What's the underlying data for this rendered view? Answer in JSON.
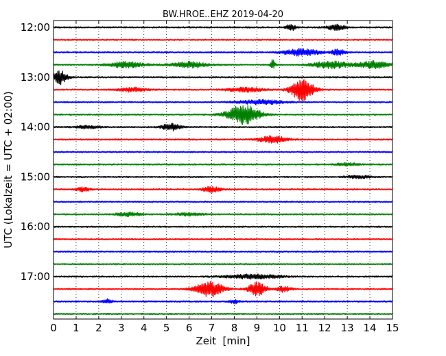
{
  "chart_data": {
    "type": "line",
    "title": "BW.HROE..EHZ 2019-04-20",
    "xlabel": "Zeit  [min]",
    "ylabel": "UTC (Lokalzeit = UTC + 02:00)",
    "xlim": [
      0,
      15
    ],
    "x_ticks": [
      "0",
      "1",
      "2",
      "3",
      "4",
      "5",
      "6",
      "7",
      "8",
      "9",
      "10",
      "11",
      "12",
      "13",
      "14",
      "15"
    ],
    "y_ticks": [
      "12:00",
      "13:00",
      "14:00",
      "15:00",
      "16:00",
      "17:00"
    ],
    "grid": "vertical-dotted",
    "colors": {
      "black": "#000000",
      "red": "#ff0000",
      "blue": "#0000ff",
      "green": "#008000"
    },
    "color_cycle": [
      "black",
      "red",
      "blue",
      "green"
    ],
    "series": [
      {
        "start": "12:00",
        "color": "black",
        "events": [
          {
            "x": 10.5,
            "amp": 5,
            "w": 0.2
          },
          {
            "x": 12.5,
            "amp": 4,
            "w": 0.4
          }
        ]
      },
      {
        "start": "12:15",
        "color": "red",
        "events": []
      },
      {
        "start": "12:30",
        "color": "blue",
        "events": [
          {
            "x": 11.0,
            "amp": 5,
            "w": 0.8
          },
          {
            "x": 12.6,
            "amp": 4,
            "w": 0.3
          }
        ]
      },
      {
        "start": "12:45",
        "color": "green",
        "events": [
          {
            "x": 3.2,
            "amp": 4,
            "w": 0.8
          },
          {
            "x": 6.0,
            "amp": 4,
            "w": 0.8
          },
          {
            "x": 9.7,
            "amp": 7,
            "w": 0.1
          },
          {
            "x": 12.3,
            "amp": 5,
            "w": 0.8
          },
          {
            "x": 14.2,
            "amp": 5,
            "w": 0.7
          }
        ]
      },
      {
        "start": "13:00",
        "color": "black",
        "events": [
          {
            "x": 0.3,
            "amp": 10,
            "w": 0.3
          }
        ]
      },
      {
        "start": "13:15",
        "color": "red",
        "events": [
          {
            "x": 3.5,
            "amp": 3,
            "w": 0.6
          },
          {
            "x": 8.5,
            "amp": 3,
            "w": 0.8
          },
          {
            "x": 11.0,
            "amp": 16,
            "w": 0.5
          }
        ]
      },
      {
        "start": "13:30",
        "color": "blue",
        "events": [
          {
            "x": 9.2,
            "amp": 3,
            "w": 1.0
          }
        ]
      },
      {
        "start": "13:45",
        "color": "green",
        "events": [
          {
            "x": 8.4,
            "amp": 14,
            "w": 0.7
          }
        ]
      },
      {
        "start": "14:00",
        "color": "black",
        "events": [
          {
            "x": 1.5,
            "amp": 2,
            "w": 0.5
          },
          {
            "x": 5.2,
            "amp": 5,
            "w": 0.4
          }
        ]
      },
      {
        "start": "14:15",
        "color": "red",
        "events": [
          {
            "x": 9.7,
            "amp": 5,
            "w": 0.6
          }
        ]
      },
      {
        "start": "14:30",
        "color": "blue",
        "events": []
      },
      {
        "start": "14:45",
        "color": "green",
        "events": [
          {
            "x": 13.0,
            "amp": 2,
            "w": 0.5
          }
        ]
      },
      {
        "start": "15:00",
        "color": "black",
        "events": [
          {
            "x": 13.5,
            "amp": 2,
            "w": 0.5
          }
        ]
      },
      {
        "start": "15:15",
        "color": "red",
        "events": [
          {
            "x": 1.3,
            "amp": 3,
            "w": 0.3
          },
          {
            "x": 7.0,
            "amp": 4,
            "w": 0.4
          }
        ]
      },
      {
        "start": "15:30",
        "color": "blue",
        "events": []
      },
      {
        "start": "15:45",
        "color": "green",
        "events": [
          {
            "x": 3.3,
            "amp": 3,
            "w": 0.5
          },
          {
            "x": 6.0,
            "amp": 2,
            "w": 0.6
          }
        ]
      },
      {
        "start": "16:00",
        "color": "black",
        "events": []
      },
      {
        "start": "16:15",
        "color": "red",
        "events": []
      },
      {
        "start": "16:30",
        "color": "blue",
        "events": []
      },
      {
        "start": "16:45",
        "color": "green",
        "events": []
      },
      {
        "start": "17:00",
        "color": "black",
        "events": [
          {
            "x": 8.8,
            "amp": 3,
            "w": 1.2
          }
        ]
      },
      {
        "start": "17:15",
        "color": "red",
        "events": [
          {
            "x": 6.9,
            "amp": 11,
            "w": 0.6
          },
          {
            "x": 9.0,
            "amp": 10,
            "w": 0.4
          },
          {
            "x": 10.2,
            "amp": 4,
            "w": 0.3
          }
        ]
      },
      {
        "start": "17:30",
        "color": "blue",
        "events": [
          {
            "x": 2.4,
            "amp": 3,
            "w": 0.2
          },
          {
            "x": 8.0,
            "amp": 3,
            "w": 0.2
          }
        ]
      },
      {
        "start": "17:45",
        "color": "green",
        "events": []
      }
    ]
  }
}
